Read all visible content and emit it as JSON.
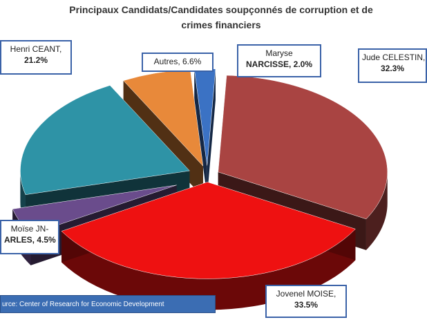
{
  "chart_data": {
    "type": "pie",
    "title_line1": "Principaux Candidats/Candidates soupçonnés de corruption et de",
    "title_line2": "crimes financiers",
    "slices": [
      {
        "label_line1": "Jude CELESTIN,",
        "label_line2": "32.3%",
        "value": 32.3,
        "color": "#a94442"
      },
      {
        "label_line1": "Jovenel MOISE,",
        "label_line2": "33.5%",
        "value": 33.5,
        "color": "#ee1111"
      },
      {
        "label_line1": "Moïse JN-",
        "label_line2": "ARLES, 4.5%",
        "value": 4.5,
        "color": "#6a4c8c"
      },
      {
        "label_line1": "Henri CEANT,",
        "label_line2": "21.2%",
        "value": 21.2,
        "color": "#2e93a6"
      },
      {
        "label_line1": "Autres, 6.6%",
        "label_line2": "",
        "value": 6.6,
        "color": "#e8893a"
      },
      {
        "label_line1": "Maryse",
        "label_line2": "NARCISSE, 2.0%",
        "value": 2.0,
        "color": "#3b72c4"
      }
    ],
    "source": "urce: Center of Research for Economic Development"
  }
}
